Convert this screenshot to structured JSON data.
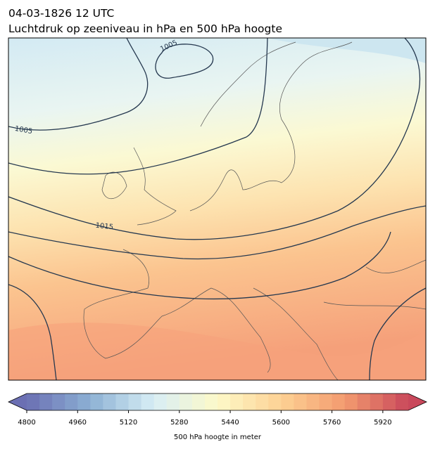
{
  "title": "04-03-1826 12 UTC",
  "subtitle": "Luchtdruk op zeeniveau in hPa en 500 hPa hoogte",
  "contour_labels": [
    "1005",
    "1005",
    "1015"
  ],
  "colorbar": {
    "label": "500 hPa hoogte in meter",
    "lim": [
      4800,
      6000
    ],
    "step": 40,
    "ticks": [
      4800,
      4960,
      5120,
      5280,
      5440,
      5600,
      5760,
      5920
    ],
    "colors": [
      "#6b6fb3",
      "#8cb1d4",
      "#d8eef5",
      "#fdf9c8",
      "#fdd194",
      "#f39b6f",
      "#c9485b"
    ]
  }
}
